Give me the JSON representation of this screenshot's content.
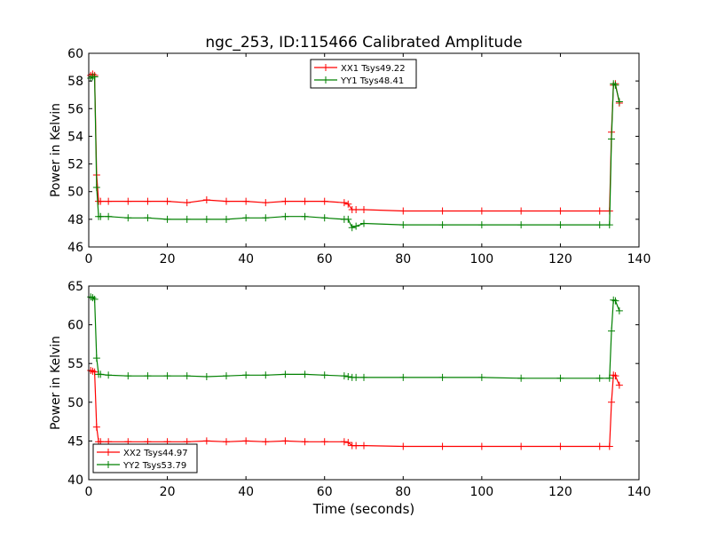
{
  "figure": {
    "title": "ngc_253, ID:115466 Calibrated Amplitude"
  },
  "chart_data": [
    {
      "type": "line",
      "xlabel": "",
      "ylabel": "Power in Kelvin",
      "xlim": [
        0,
        140
      ],
      "ylim": [
        46,
        60
      ],
      "xticks": [
        0,
        20,
        40,
        60,
        80,
        100,
        120,
        140
      ],
      "yticks": [
        46,
        48,
        50,
        52,
        54,
        56,
        58,
        60
      ],
      "grid": false,
      "legend": "top-center",
      "series": [
        {
          "name": "XX1 Tsys49.22",
          "color": "#ff0000",
          "x": [
            0.5,
            1,
            1.5,
            2,
            2.5,
            3,
            5,
            10,
            15,
            20,
            25,
            30,
            35,
            40,
            45,
            50,
            55,
            60,
            65,
            66,
            67,
            68,
            70,
            80,
            90,
            100,
            110,
            120,
            130,
            132.5,
            133,
            133.5,
            134,
            135
          ],
          "y": [
            58.4,
            58.5,
            58.4,
            51.2,
            49.3,
            49.3,
            49.3,
            49.3,
            49.3,
            49.3,
            49.2,
            49.4,
            49.3,
            49.3,
            49.2,
            49.3,
            49.3,
            49.3,
            49.2,
            49.1,
            48.7,
            48.7,
            48.7,
            48.6,
            48.6,
            48.6,
            48.6,
            48.6,
            48.6,
            48.6,
            54.3,
            57.7,
            57.8,
            56.4
          ]
        },
        {
          "name": "YY1 Tsys48.41",
          "color": "#008000",
          "x": [
            0.5,
            1,
            1.5,
            2,
            2.5,
            3,
            5,
            10,
            15,
            20,
            25,
            30,
            35,
            40,
            45,
            50,
            55,
            60,
            65,
            66,
            67,
            68,
            70,
            80,
            90,
            100,
            110,
            120,
            130,
            132.5,
            133,
            133.5,
            134,
            135
          ],
          "y": [
            58.2,
            58.3,
            58.3,
            50.3,
            48.2,
            48.2,
            48.2,
            48.1,
            48.1,
            48.0,
            48.0,
            48.0,
            48.0,
            48.1,
            48.1,
            48.2,
            48.2,
            48.1,
            48.0,
            48.0,
            47.4,
            47.5,
            47.7,
            47.6,
            47.6,
            47.6,
            47.6,
            47.6,
            47.6,
            47.6,
            53.8,
            57.8,
            57.7,
            56.5
          ]
        }
      ]
    },
    {
      "type": "line",
      "xlabel": "Time (seconds)",
      "ylabel": "Power in Kelvin",
      "xlim": [
        0,
        140
      ],
      "ylim": [
        40,
        65
      ],
      "xticks": [
        0,
        20,
        40,
        60,
        80,
        100,
        120,
        140
      ],
      "yticks": [
        40,
        45,
        50,
        55,
        60,
        65
      ],
      "grid": false,
      "legend": "bottom-left",
      "series": [
        {
          "name": "XX2 Tsys44.97",
          "color": "#ff0000",
          "x": [
            0.5,
            1,
            1.5,
            2,
            2.5,
            3,
            5,
            10,
            15,
            20,
            25,
            30,
            35,
            40,
            45,
            50,
            55,
            60,
            65,
            66,
            67,
            68,
            70,
            80,
            90,
            100,
            110,
            120,
            130,
            132.5,
            133,
            133.5,
            134,
            135
          ],
          "y": [
            54.1,
            54.0,
            53.9,
            46.8,
            44.9,
            44.9,
            44.9,
            44.9,
            44.9,
            44.9,
            44.9,
            45.0,
            44.9,
            45.0,
            44.9,
            45.0,
            44.9,
            44.9,
            44.9,
            44.8,
            44.4,
            44.4,
            44.4,
            44.3,
            44.3,
            44.3,
            44.3,
            44.3,
            44.3,
            44.3,
            50.0,
            53.5,
            53.4,
            52.2
          ]
        },
        {
          "name": "YY2 Tsys53.79",
          "color": "#008000",
          "x": [
            0.5,
            1,
            1.5,
            2,
            2.5,
            3,
            5,
            10,
            15,
            20,
            25,
            30,
            35,
            40,
            45,
            50,
            55,
            60,
            65,
            66,
            67,
            68,
            70,
            80,
            90,
            100,
            110,
            120,
            130,
            132.5,
            133,
            133.5,
            134,
            135
          ],
          "y": [
            63.6,
            63.5,
            63.3,
            55.7,
            53.6,
            53.6,
            53.5,
            53.4,
            53.4,
            53.4,
            53.4,
            53.3,
            53.4,
            53.5,
            53.5,
            53.6,
            53.6,
            53.5,
            53.4,
            53.3,
            53.2,
            53.2,
            53.2,
            53.2,
            53.2,
            53.2,
            53.1,
            53.1,
            53.1,
            53.1,
            59.2,
            63.2,
            63.1,
            61.8
          ]
        }
      ]
    }
  ]
}
